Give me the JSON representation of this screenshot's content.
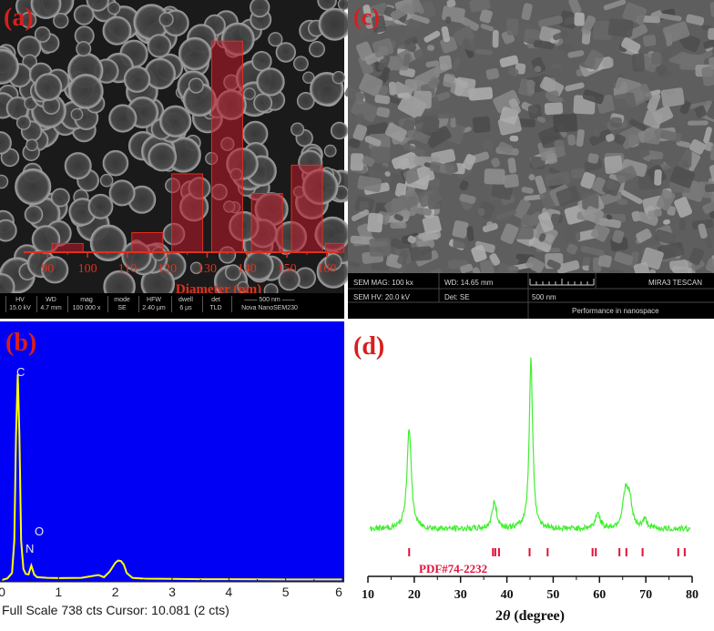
{
  "panels": {
    "a": {
      "label": "(a)",
      "info_bar": [
        {
          "head": "HV",
          "value": "15.0 kV"
        },
        {
          "head": "WD",
          "value": "4.7 mm"
        },
        {
          "head": "mag",
          "value": "100 000 x"
        },
        {
          "head": "mode",
          "value": "SE"
        },
        {
          "head": "HFW",
          "value": "2.40 µm"
        },
        {
          "head": "dwell",
          "value": "6 µs"
        },
        {
          "head": "det",
          "value": "TLD"
        },
        {
          "head": "—— 500 nm ——",
          "value": "Nova NanoSEM230"
        }
      ],
      "histogram": {
        "type": "bar",
        "xlabel": "Diameter (nm)",
        "x_ticks": [
          90,
          100,
          110,
          120,
          130,
          140,
          150,
          160
        ],
        "xlim": [
          84,
          163
        ],
        "bins": [
          {
            "center": 95,
            "value": 4
          },
          {
            "center": 115,
            "value": 9
          },
          {
            "center": 125,
            "value": 36
          },
          {
            "center": 135,
            "value": 97
          },
          {
            "center": 145,
            "value": 27
          },
          {
            "center": 155,
            "value": 40
          },
          {
            "center": 162,
            "value": 4
          }
        ],
        "ylim": [
          0,
          100
        ],
        "bar_color": "#c0182a"
      }
    },
    "c": {
      "label": "(c)",
      "info": {
        "sem_mag": "SEM MAG: 100 kx",
        "wd": "WD: 14.65 mm",
        "brand": "MIRA3 TESCAN",
        "sem_hv": "SEM HV: 20.0 kV",
        "det": "Det: SE",
        "scale": "500 nm",
        "slogan": "Performance in nanospace"
      }
    },
    "b": {
      "label": "(b)",
      "footer": "Full Scale 738 cts Cursor: 10.081  (2 cts)",
      "chart_data": {
        "type": "line",
        "x_ticks": [
          0,
          1,
          2,
          3,
          4,
          5,
          6
        ],
        "xlim": [
          0,
          6
        ],
        "ylim": [
          0,
          738
        ],
        "peak_labels": [
          {
            "text": "C",
            "x": 0.28
          },
          {
            "text": "O",
            "x": 0.52
          },
          {
            "text": "N",
            "x": 0.39
          }
        ],
        "series": [
          {
            "x": [
              0,
              0.1,
              0.18,
              0.22,
              0.25,
              0.28,
              0.31,
              0.34,
              0.38,
              0.42,
              0.47,
              0.52,
              0.57,
              0.62,
              0.8,
              1.0,
              1.4,
              1.7,
              1.75,
              1.8,
              1.9,
              2.0,
              2.05,
              2.1,
              2.15,
              2.2,
              2.3,
              2.5,
              3.0,
              3.5,
              4.0,
              5.0,
              6.0
            ],
            "y": [
              0,
              6,
              25,
              140,
              520,
              738,
              520,
              140,
              40,
              22,
              20,
              52,
              20,
              10,
              8,
              7,
              8,
              18,
              14,
              10,
              30,
              62,
              70,
              68,
              55,
              25,
              8,
              5,
              4,
              3,
              3,
              2,
              2
            ]
          }
        ],
        "line_color": "#ffff00"
      }
    },
    "d": {
      "label": "(d)",
      "chart_data": {
        "type": "line",
        "xlabel_prefix": "2",
        "xlabel_symbol": "θ",
        "xlabel_suffix": " (degree)",
        "x_ticks": [
          10,
          20,
          30,
          40,
          50,
          60,
          70,
          80
        ],
        "xlim": [
          10,
          80
        ],
        "ylim": [
          0,
          100
        ],
        "line_color": "#44ee33",
        "reference_label": "PDF#74-2232",
        "reference_color": "#e0103a",
        "reference_lines": [
          18.9,
          37.0,
          37.5,
          38.3,
          44.9,
          48.8,
          58.5,
          59.2,
          64.3,
          65.8,
          69.3,
          77.0,
          78.4
        ],
        "peaks": [
          {
            "pos": 18.9,
            "height": 58,
            "width": 0.55
          },
          {
            "pos": 37.3,
            "height": 15,
            "width": 0.6
          },
          {
            "pos": 45.2,
            "height": 97,
            "width": 0.45
          },
          {
            "pos": 59.6,
            "height": 9,
            "width": 0.6
          },
          {
            "pos": 65.6,
            "height": 20,
            "width": 0.7
          },
          {
            "pos": 66.5,
            "height": 14,
            "width": 0.6
          },
          {
            "pos": 69.8,
            "height": 5,
            "width": 0.6
          }
        ]
      }
    }
  }
}
